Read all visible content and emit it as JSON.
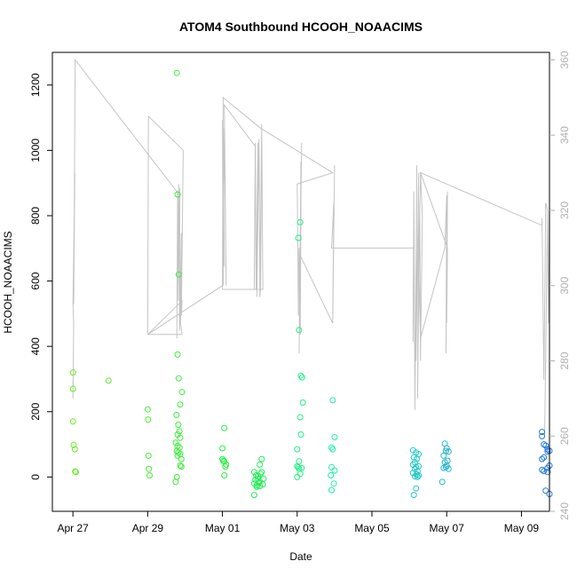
{
  "chart_data": {
    "type": "scatter",
    "title": "ATOM4 Southbound HCOOH_NOAACIMS",
    "xlabel": "Date",
    "ylabel": "HCOOH_NOAACIMS",
    "x_range_days": [
      -0.55,
      12.75
    ],
    "ylim": [
      -105,
      1300
    ],
    "y2lim": [
      240,
      362
    ],
    "x_ticks": [
      {
        "day": 0,
        "label": "Apr 27"
      },
      {
        "day": 2,
        "label": "Apr 29"
      },
      {
        "day": 4,
        "label": "May 01"
      },
      {
        "day": 6,
        "label": "May 03"
      },
      {
        "day": 8,
        "label": "May 05"
      },
      {
        "day": 10,
        "label": "May 07"
      },
      {
        "day": 12,
        "label": "May 09"
      }
    ],
    "y_ticks": [
      0,
      200,
      400,
      600,
      800,
      1000,
      1200
    ],
    "y2_ticks": [
      240,
      260,
      280,
      300,
      320,
      340,
      360
    ],
    "colors": {
      "points_start": "#66ee22",
      "points_mid": "#22ee44",
      "points_cyan": "#22eebb",
      "points_end": "#2277dd",
      "secondary_line": "#c4c4c4",
      "frame": "#000000",
      "right_axis": "#b0b0b0"
    },
    "series": [
      {
        "points": [
          [
            0.0,
            320
          ],
          [
            0.0,
            270
          ],
          [
            0.0,
            170
          ],
          [
            0.02,
            98
          ],
          [
            0.05,
            85
          ],
          [
            0.06,
            17
          ],
          [
            0.08,
            15
          ],
          [
            0.95,
            295
          ],
          [
            2.0,
            207
          ],
          [
            2.01,
            176
          ],
          [
            2.02,
            65
          ],
          [
            2.03,
            25
          ],
          [
            2.05,
            5
          ],
          [
            2.78,
            1237
          ],
          [
            2.8,
            865
          ],
          [
            2.83,
            620
          ],
          [
            2.8,
            375
          ],
          [
            2.83,
            302
          ],
          [
            2.92,
            260
          ],
          [
            2.87,
            222
          ],
          [
            2.77,
            190
          ],
          [
            2.82,
            160
          ],
          [
            2.85,
            140
          ],
          [
            2.8,
            130
          ],
          [
            2.87,
            120
          ],
          [
            2.75,
            105
          ],
          [
            2.8,
            95
          ],
          [
            2.85,
            90
          ],
          [
            2.78,
            80
          ],
          [
            2.82,
            75
          ],
          [
            2.87,
            70
          ],
          [
            2.8,
            65
          ],
          [
            2.9,
            55
          ],
          [
            2.87,
            35
          ],
          [
            2.9,
            32
          ],
          [
            2.78,
            0
          ],
          [
            2.75,
            -15
          ],
          [
            4.05,
            150
          ],
          [
            4.0,
            88
          ],
          [
            4.0,
            55
          ],
          [
            4.02,
            50
          ],
          [
            4.05,
            48
          ],
          [
            4.1,
            38
          ],
          [
            4.08,
            32
          ],
          [
            4.05,
            5
          ],
          [
            4.85,
            15
          ],
          [
            4.9,
            5
          ],
          [
            4.95,
            -5
          ],
          [
            5.0,
            -15
          ],
          [
            4.85,
            -20
          ],
          [
            4.92,
            -25
          ],
          [
            5.0,
            -28
          ],
          [
            4.88,
            -8
          ],
          [
            4.95,
            2
          ],
          [
            5.02,
            10
          ],
          [
            4.92,
            -30
          ],
          [
            4.85,
            -55
          ],
          [
            5.05,
            55
          ],
          [
            5.0,
            38
          ],
          [
            5.05,
            15
          ],
          [
            5.1,
            -5
          ],
          [
            4.98,
            -18
          ],
          [
            5.08,
            -22
          ],
          [
            6.08,
            780
          ],
          [
            6.03,
            732
          ],
          [
            6.05,
            450
          ],
          [
            6.1,
            310
          ],
          [
            6.13,
            305
          ],
          [
            6.15,
            228
          ],
          [
            6.08,
            183
          ],
          [
            6.1,
            130
          ],
          [
            6.0,
            85
          ],
          [
            6.05,
            48
          ],
          [
            6.0,
            33
          ],
          [
            6.03,
            30
          ],
          [
            6.05,
            25
          ],
          [
            6.12,
            28
          ],
          [
            6.08,
            10
          ],
          [
            6.0,
            0
          ],
          [
            6.95,
            235
          ],
          [
            7.0,
            122
          ],
          [
            6.92,
            90
          ],
          [
            6.95,
            85
          ],
          [
            6.92,
            30
          ],
          [
            7.0,
            20
          ],
          [
            6.9,
            5
          ],
          [
            6.98,
            -20
          ],
          [
            6.92,
            -40
          ],
          [
            9.1,
            82
          ],
          [
            9.18,
            75
          ],
          [
            9.25,
            70
          ],
          [
            9.12,
            60
          ],
          [
            9.2,
            55
          ],
          [
            9.15,
            45
          ],
          [
            9.1,
            38
          ],
          [
            9.25,
            33
          ],
          [
            9.18,
            30
          ],
          [
            9.15,
            25
          ],
          [
            9.22,
            18
          ],
          [
            9.1,
            12
          ],
          [
            9.2,
            8
          ],
          [
            9.25,
            5
          ],
          [
            9.15,
            2
          ],
          [
            9.22,
            0
          ],
          [
            9.18,
            -35
          ],
          [
            9.12,
            -55
          ],
          [
            9.95,
            102
          ],
          [
            10.0,
            88
          ],
          [
            9.98,
            80
          ],
          [
            10.05,
            78
          ],
          [
            9.92,
            65
          ],
          [
            10.02,
            50
          ],
          [
            9.95,
            45
          ],
          [
            10.0,
            35
          ],
          [
            9.98,
            30
          ],
          [
            9.92,
            28
          ],
          [
            10.05,
            25
          ],
          [
            9.88,
            -15
          ],
          [
            12.55,
            138
          ],
          [
            12.55,
            125
          ],
          [
            12.6,
            100
          ],
          [
            12.65,
            96
          ],
          [
            12.7,
            85
          ],
          [
            12.75,
            80
          ],
          [
            12.7,
            78
          ],
          [
            12.6,
            60
          ],
          [
            12.55,
            55
          ],
          [
            12.75,
            35
          ],
          [
            12.7,
            28
          ],
          [
            12.55,
            22
          ],
          [
            12.6,
            18
          ],
          [
            12.7,
            15
          ],
          [
            12.65,
            -42
          ],
          [
            12.75,
            -52
          ]
        ]
      },
      {
        "line": [
          [
            0.0,
            275
          ],
          [
            0.0,
            270
          ],
          [
            0.02,
            290
          ],
          [
            0.0,
            295
          ],
          [
            0.05,
            330
          ],
          [
            0.02,
            295
          ],
          [
            0.06,
            360
          ],
          [
            2.78,
            325
          ],
          [
            2.8,
            325
          ],
          [
            2.78,
            286
          ],
          [
            2.8,
            325
          ],
          [
            2.82,
            296
          ],
          [
            2.83,
            327
          ],
          [
            2.82,
            298
          ],
          [
            2.86,
            326
          ],
          [
            2.85,
            288
          ],
          [
            2.9,
            314
          ],
          [
            2.88,
            290
          ],
          [
            2.92,
            287
          ],
          [
            2.0,
            287
          ],
          [
            2.02,
            345
          ],
          [
            2.95,
            336
          ],
          [
            2.9,
            292
          ],
          [
            2.92,
            296
          ],
          [
            2.0,
            287
          ],
          [
            4.0,
            300
          ],
          [
            4.02,
            342
          ],
          [
            4.05,
            305
          ],
          [
            4.0,
            344
          ],
          [
            4.02,
            300
          ],
          [
            4.05,
            342
          ],
          [
            4.1,
            300
          ],
          [
            4.05,
            348
          ],
          [
            4.88,
            337
          ],
          [
            4.85,
            299
          ],
          [
            4.88,
            338
          ],
          [
            4.9,
            299
          ],
          [
            4.95,
            338
          ],
          [
            4.92,
            297
          ],
          [
            4.98,
            339
          ],
          [
            5.0,
            300
          ],
          [
            5.05,
            342
          ],
          [
            5.0,
            297
          ],
          [
            5.02,
            299
          ],
          [
            5.05,
            343
          ],
          [
            5.08,
            299
          ],
          [
            4.0,
            299
          ],
          [
            4.02,
            350
          ],
          [
            5.0,
            342
          ],
          [
            6.95,
            330
          ],
          [
            6.0,
            327
          ],
          [
            6.02,
            308
          ],
          [
            6.03,
            292
          ],
          [
            6.05,
            310
          ],
          [
            6.08,
            287
          ],
          [
            6.1,
            318
          ],
          [
            6.1,
            333
          ],
          [
            6.05,
            282
          ],
          [
            6.12,
            338
          ],
          [
            6.08,
            308
          ],
          [
            6.95,
            290
          ],
          [
            7.0,
            332
          ],
          [
            6.95,
            291
          ],
          [
            6.98,
            322
          ],
          [
            6.92,
            310
          ],
          [
            9.12,
            310
          ],
          [
            9.1,
            285
          ],
          [
            9.12,
            325
          ],
          [
            9.15,
            267
          ],
          [
            9.2,
            332
          ],
          [
            9.18,
            280
          ],
          [
            9.25,
            330
          ],
          [
            9.22,
            270
          ],
          [
            9.28,
            322
          ],
          [
            9.3,
            280
          ],
          [
            9.35,
            318
          ],
          [
            9.3,
            330
          ],
          [
            9.25,
            305
          ],
          [
            9.3,
            286
          ],
          [
            9.95,
            310
          ],
          [
            10.0,
            324
          ],
          [
            9.98,
            282
          ],
          [
            10.02,
            325
          ],
          [
            10.0,
            290
          ],
          [
            10.02,
            310
          ],
          [
            9.3,
            330
          ],
          [
            12.55,
            316
          ],
          [
            12.55,
            318
          ],
          [
            12.6,
            275
          ],
          [
            12.65,
            322
          ],
          [
            12.7,
            320
          ],
          [
            12.62,
            260
          ],
          [
            12.7,
            320
          ],
          [
            12.72,
            290
          ],
          [
            12.75,
            320
          ]
        ]
      }
    ]
  }
}
